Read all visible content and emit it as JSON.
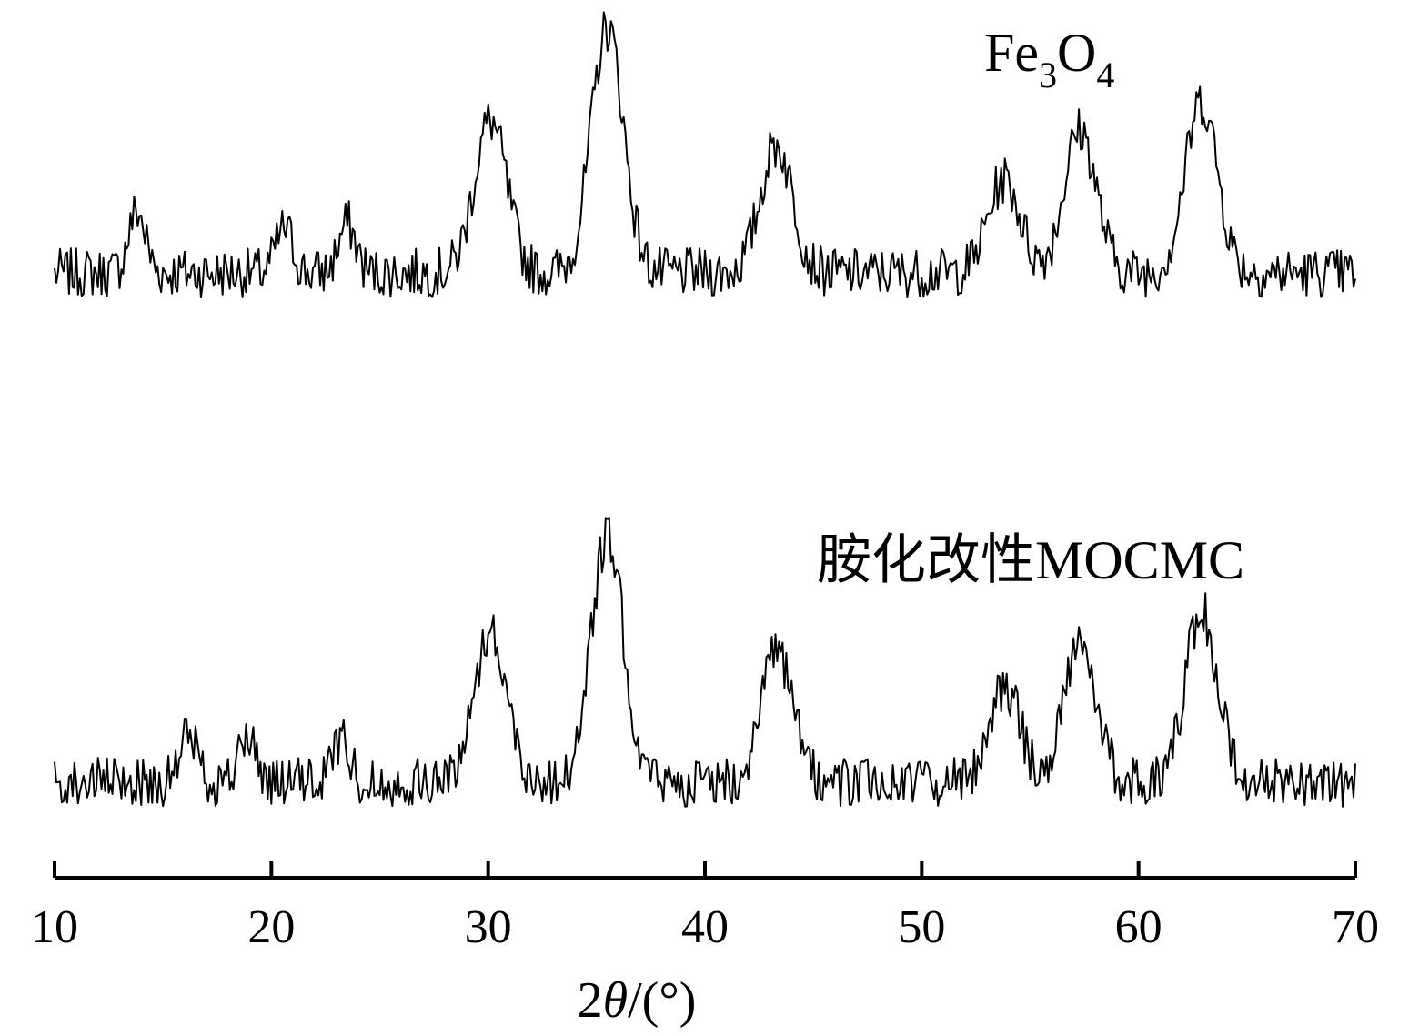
{
  "chart_data": {
    "type": "line",
    "xlabel_parts": [
      "2",
      "θ",
      "/(°)"
    ],
    "ylabel": "",
    "xlim": [
      10,
      70
    ],
    "xticks": [
      10,
      20,
      30,
      40,
      50,
      60,
      70
    ],
    "grid": false,
    "y_axis_shown": false,
    "series": [
      {
        "name_parts": [
          "Fe",
          "3",
          "O",
          "4"
        ],
        "baseline": 1.0,
        "peaks": [
          {
            "x": 13.8,
            "height": 0.25
          },
          {
            "x": 20.6,
            "height": 0.18
          },
          {
            "x": 23.5,
            "height": 0.2
          },
          {
            "x": 30.1,
            "height": 0.62
          },
          {
            "x": 35.5,
            "height": 1.0
          },
          {
            "x": 43.3,
            "height": 0.52
          },
          {
            "x": 53.8,
            "height": 0.38
          },
          {
            "x": 57.3,
            "height": 0.58
          },
          {
            "x": 62.9,
            "height": 0.7
          }
        ]
      },
      {
        "name": "胺化改性MOCMC",
        "baseline": 0.0,
        "peaks": [
          {
            "x": 16.2,
            "height": 0.2
          },
          {
            "x": 18.9,
            "height": 0.18
          },
          {
            "x": 23.2,
            "height": 0.18
          },
          {
            "x": 30.1,
            "height": 0.62
          },
          {
            "x": 35.5,
            "height": 1.0
          },
          {
            "x": 43.3,
            "height": 0.52
          },
          {
            "x": 53.8,
            "height": 0.38
          },
          {
            "x": 57.3,
            "height": 0.58
          },
          {
            "x": 62.9,
            "height": 0.7
          }
        ]
      }
    ]
  }
}
